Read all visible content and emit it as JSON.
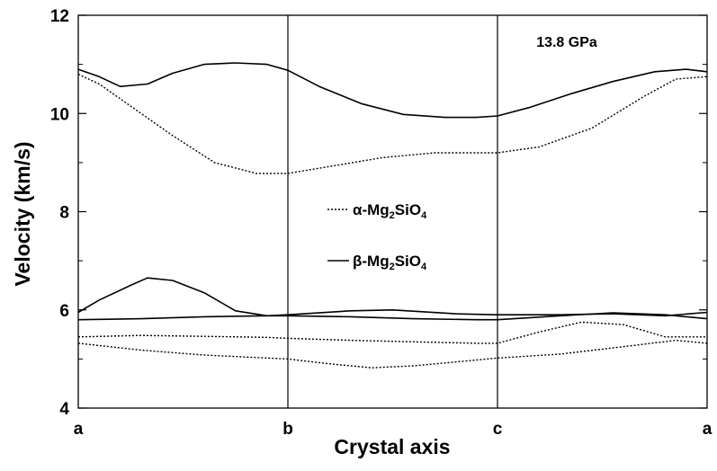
{
  "chart_data": {
    "type": "line",
    "xlabel": "Crystal axis",
    "ylabel": "Velocity (km/s)",
    "x_tick_labels": [
      "a",
      "b",
      "c",
      "a"
    ],
    "x_tick_positions": [
      0,
      1,
      2,
      3
    ],
    "xlim": [
      0,
      3
    ],
    "ylim": [
      4,
      12
    ],
    "y_ticks": [
      4,
      6,
      8,
      10,
      12
    ],
    "annotation": "13.8 GPa",
    "legend_placement": "center",
    "legend": [
      {
        "prefix": "α-Mg",
        "sub1": "2",
        "mid": "SiO",
        "sub2": "4",
        "style": "dotted"
      },
      {
        "prefix": "β-Mg",
        "sub1": "2",
        "mid": "SiO",
        "sub2": "4",
        "style": "solid"
      }
    ],
    "series": [
      {
        "style": "solid",
        "x": [
          0,
          0.1,
          0.2,
          0.33,
          0.45,
          0.6,
          0.75,
          0.9,
          1.0,
          1.15,
          1.35,
          1.55,
          1.75,
          1.9,
          2.0,
          2.15,
          2.35,
          2.55,
          2.75,
          2.9,
          3.0
        ],
        "y": [
          10.9,
          10.75,
          10.55,
          10.6,
          10.82,
          11.0,
          11.03,
          11.0,
          10.88,
          10.55,
          10.2,
          9.98,
          9.92,
          9.92,
          9.95,
          10.12,
          10.4,
          10.65,
          10.85,
          10.9,
          10.85
        ]
      },
      {
        "style": "dotted",
        "x": [
          0,
          0.1,
          0.25,
          0.45,
          0.65,
          0.85,
          1.0,
          1.2,
          1.45,
          1.7,
          1.9,
          2.0,
          2.2,
          2.45,
          2.7,
          2.85,
          3.0
        ],
        "y": [
          10.8,
          10.6,
          10.15,
          9.55,
          9.0,
          8.78,
          8.78,
          8.92,
          9.1,
          9.2,
          9.2,
          9.2,
          9.32,
          9.7,
          10.35,
          10.7,
          10.75
        ]
      },
      {
        "style": "solid",
        "x": [
          0,
          0.1,
          0.25,
          0.33,
          0.45,
          0.6,
          0.75,
          0.9,
          1.0,
          1.3,
          1.5,
          1.8,
          2.0,
          2.3,
          2.55,
          2.8,
          3.0
        ],
        "y": [
          5.95,
          6.2,
          6.5,
          6.65,
          6.6,
          6.35,
          5.98,
          5.88,
          5.9,
          5.98,
          6.0,
          5.92,
          5.9,
          5.9,
          5.92,
          5.88,
          5.95
        ]
      },
      {
        "style": "solid",
        "x": [
          0,
          0.3,
          0.6,
          0.9,
          1.0,
          1.3,
          1.6,
          1.9,
          2.0,
          2.3,
          2.55,
          2.8,
          3.0
        ],
        "y": [
          5.8,
          5.82,
          5.86,
          5.88,
          5.88,
          5.86,
          5.82,
          5.8,
          5.8,
          5.88,
          5.94,
          5.9,
          5.82
        ]
      },
      {
        "style": "dotted",
        "x": [
          0,
          0.3,
          0.6,
          0.9,
          1.0,
          1.3,
          1.6,
          1.9,
          2.0,
          2.2,
          2.4,
          2.6,
          2.8,
          3.0
        ],
        "y": [
          5.45,
          5.48,
          5.46,
          5.44,
          5.42,
          5.38,
          5.35,
          5.32,
          5.32,
          5.55,
          5.75,
          5.7,
          5.45,
          5.45
        ]
      },
      {
        "style": "dotted",
        "x": [
          0,
          0.3,
          0.6,
          0.9,
          1.0,
          1.2,
          1.4,
          1.6,
          1.9,
          2.0,
          2.3,
          2.6,
          2.85,
          3.0
        ],
        "y": [
          5.32,
          5.18,
          5.08,
          5.02,
          5.0,
          4.9,
          4.82,
          4.86,
          4.98,
          5.02,
          5.1,
          5.25,
          5.38,
          5.32
        ]
      }
    ]
  }
}
